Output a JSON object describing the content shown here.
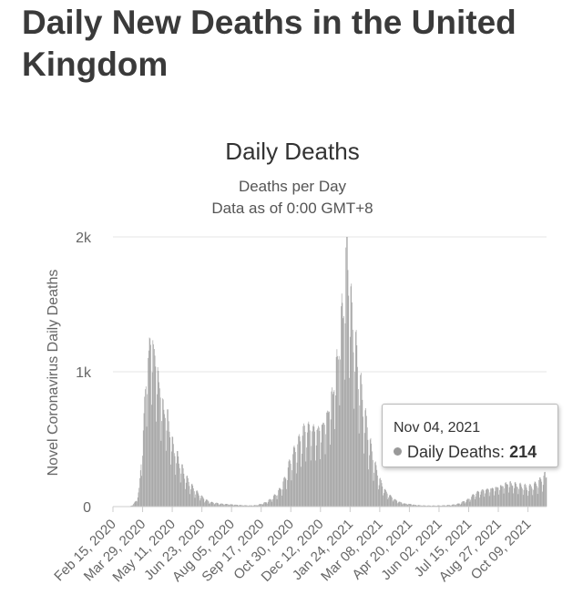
{
  "page": {
    "title": "Daily New Deaths in the United Kingdom"
  },
  "tooltip": {
    "date": "Nov 04, 2021",
    "series": "Daily Deaths",
    "separator": ":",
    "value": "214"
  },
  "chart_data": {
    "type": "bar",
    "title": "Daily Deaths",
    "subtitle": "Deaths per Day",
    "subtitle2": "Data as of 0:00 GMT+8",
    "ylabel": "Novel Coronavirus Daily Deaths",
    "xlabel": "",
    "ylim": [
      0,
      2000
    ],
    "y_ticks": [
      {
        "value": 0,
        "label": "0"
      },
      {
        "value": 1000,
        "label": "1k"
      },
      {
        "value": 2000,
        "label": "2k"
      }
    ],
    "x_range": [
      "2020-02-15",
      "2021-11-05"
    ],
    "x_tick_labels": [
      "Feb 15, 2020",
      "Mar 29, 2020",
      "May 11, 2020",
      "Jun 23, 2020",
      "Aug 05, 2020",
      "Sep 17, 2020",
      "Oct 30, 2020",
      "Dec 12, 2020",
      "Jan 24, 2021",
      "Mar 08, 2021",
      "Apr 20, 2021",
      "Jun 02, 2021",
      "Jul 15, 2021",
      "Aug 27, 2021",
      "Oct 09, 2021"
    ],
    "grid": true,
    "legend": "none",
    "bar_color": "#9e9e9e",
    "series": [
      {
        "name": "Daily Deaths",
        "points": [
          [
            "2020-02-15",
            0
          ],
          [
            "2020-03-10",
            0
          ],
          [
            "2020-03-14",
            10
          ],
          [
            "2020-03-20",
            40
          ],
          [
            "2020-03-24",
            120
          ],
          [
            "2020-03-28",
            350
          ],
          [
            "2020-04-01",
            700
          ],
          [
            "2020-04-04",
            900
          ],
          [
            "2020-04-08",
            1100
          ],
          [
            "2020-04-11",
            1140
          ],
          [
            "2020-04-15",
            1050
          ],
          [
            "2020-04-18",
            950
          ],
          [
            "2020-04-22",
            850
          ],
          [
            "2020-04-26",
            700
          ],
          [
            "2020-04-30",
            650
          ],
          [
            "2020-05-05",
            600
          ],
          [
            "2020-05-10",
            450
          ],
          [
            "2020-05-15",
            380
          ],
          [
            "2020-05-20",
            320
          ],
          [
            "2020-05-26",
            250
          ],
          [
            "2020-06-01",
            190
          ],
          [
            "2020-06-08",
            140
          ],
          [
            "2020-06-15",
            100
          ],
          [
            "2020-06-22",
            70
          ],
          [
            "2020-06-29",
            45
          ],
          [
            "2020-07-06",
            30
          ],
          [
            "2020-07-13",
            25
          ],
          [
            "2020-07-20",
            20
          ],
          [
            "2020-08-05",
            15
          ],
          [
            "2020-08-20",
            10
          ],
          [
            "2020-09-01",
            8
          ],
          [
            "2020-09-10",
            10
          ],
          [
            "2020-09-17",
            18
          ],
          [
            "2020-09-24",
            30
          ],
          [
            "2020-10-01",
            50
          ],
          [
            "2020-10-08",
            80
          ],
          [
            "2020-10-15",
            120
          ],
          [
            "2020-10-22",
            190
          ],
          [
            "2020-10-29",
            300
          ],
          [
            "2020-11-05",
            380
          ],
          [
            "2020-11-12",
            450
          ],
          [
            "2020-11-19",
            520
          ],
          [
            "2020-11-26",
            530
          ],
          [
            "2020-12-03",
            520
          ],
          [
            "2020-12-10",
            520
          ],
          [
            "2020-12-17",
            560
          ],
          [
            "2020-12-24",
            650
          ],
          [
            "2020-12-31",
            800
          ],
          [
            "2021-01-07",
            1050
          ],
          [
            "2021-01-12",
            1300
          ],
          [
            "2021-01-17",
            1500
          ],
          [
            "2021-01-20",
            1820
          ],
          [
            "2021-01-24",
            1400
          ],
          [
            "2021-01-28",
            1250
          ],
          [
            "2021-02-03",
            1000
          ],
          [
            "2021-02-10",
            750
          ],
          [
            "2021-02-17",
            550
          ],
          [
            "2021-02-24",
            380
          ],
          [
            "2021-03-03",
            250
          ],
          [
            "2021-03-10",
            160
          ],
          [
            "2021-03-17",
            100
          ],
          [
            "2021-03-24",
            70
          ],
          [
            "2021-03-31",
            45
          ],
          [
            "2021-04-07",
            30
          ],
          [
            "2021-04-14",
            20
          ],
          [
            "2021-04-21",
            18
          ],
          [
            "2021-04-28",
            12
          ],
          [
            "2021-05-10",
            8
          ],
          [
            "2021-05-24",
            7
          ],
          [
            "2021-06-07",
            8
          ],
          [
            "2021-06-21",
            12
          ],
          [
            "2021-07-01",
            20
          ],
          [
            "2021-07-08",
            35
          ],
          [
            "2021-07-15",
            50
          ],
          [
            "2021-07-22",
            80
          ],
          [
            "2021-07-29",
            100
          ],
          [
            "2021-08-05",
            110
          ],
          [
            "2021-08-15",
            120
          ],
          [
            "2021-08-25",
            130
          ],
          [
            "2021-09-01",
            140
          ],
          [
            "2021-09-10",
            160
          ],
          [
            "2021-09-20",
            150
          ],
          [
            "2021-10-01",
            140
          ],
          [
            "2021-10-10",
            130
          ],
          [
            "2021-10-20",
            150
          ],
          [
            "2021-10-28",
            180
          ],
          [
            "2021-11-04",
            214
          ]
        ]
      }
    ]
  }
}
